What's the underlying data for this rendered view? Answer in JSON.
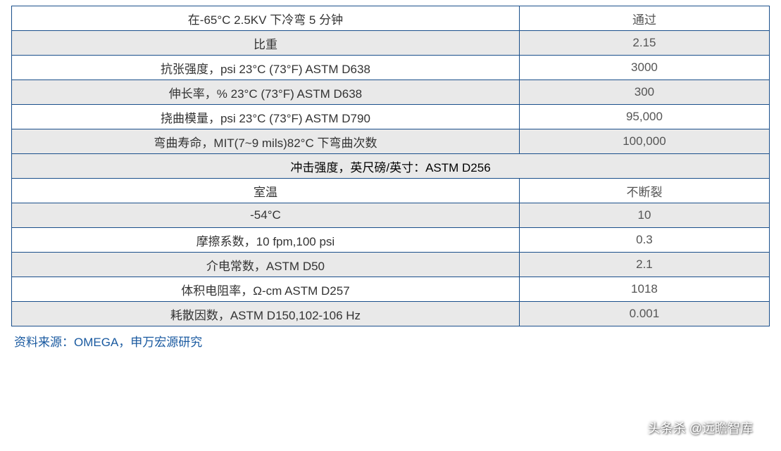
{
  "table": {
    "type": "table",
    "columns": [
      "label",
      "value"
    ],
    "column_widths_pct": [
      67,
      33
    ],
    "border_color": "#1a4f8b",
    "row_bg_alternating": [
      "#e9e9e9",
      "#ffffff"
    ],
    "font_size_pt": 13,
    "text_color_label": "#333333",
    "text_color_value": "#555555",
    "text_align": "center",
    "rows": [
      {
        "label": "在-65°C 2.5KV 下冷弯 5 分钟",
        "value": "通过",
        "bg": "#ffffff"
      },
      {
        "label": "比重",
        "value": "2.15",
        "bg": "#e9e9e9"
      },
      {
        "label": "抗张强度，psi 23°C (73°F) ASTM D638",
        "value": "3000",
        "bg": "#ffffff"
      },
      {
        "label": "伸长率，% 23°C (73°F) ASTM D638",
        "value": "300",
        "bg": "#e9e9e9"
      },
      {
        "label": "挠曲模量，psi 23°C (73°F) ASTM D790",
        "value": "95,000",
        "bg": "#ffffff"
      },
      {
        "label": "弯曲寿命，MIT(7~9 mils)82°C 下弯曲次数",
        "value": "100,000",
        "bg": "#e9e9e9"
      },
      {
        "span_label": "冲击强度，英尺磅/英寸：ASTM D256",
        "bg": "#e9e9e9",
        "colspan": 2
      },
      {
        "label": "室温",
        "value": "不断裂",
        "bg": "#ffffff"
      },
      {
        "label": "-54°C",
        "value": "10",
        "bg": "#e9e9e9"
      },
      {
        "label": "摩擦系数，10 fpm,100 psi",
        "value": "0.3",
        "bg": "#ffffff"
      },
      {
        "label": "介电常数，ASTM D50",
        "value": "2.1",
        "bg": "#e9e9e9"
      },
      {
        "label": "体积电阻率，Ω-cm ASTM D257",
        "value": "1018",
        "bg": "#ffffff"
      },
      {
        "label": "耗散因数，ASTM D150,102-106 Hz",
        "value": "0.001",
        "bg": "#e9e9e9"
      }
    ]
  },
  "source": {
    "text": "资料来源：OMEGA，申万宏源研究",
    "color": "#1a5aa0",
    "font_size_pt": 13
  },
  "watermark": {
    "text": "头条杀 @远瞻智库",
    "color": "#ffffff"
  }
}
